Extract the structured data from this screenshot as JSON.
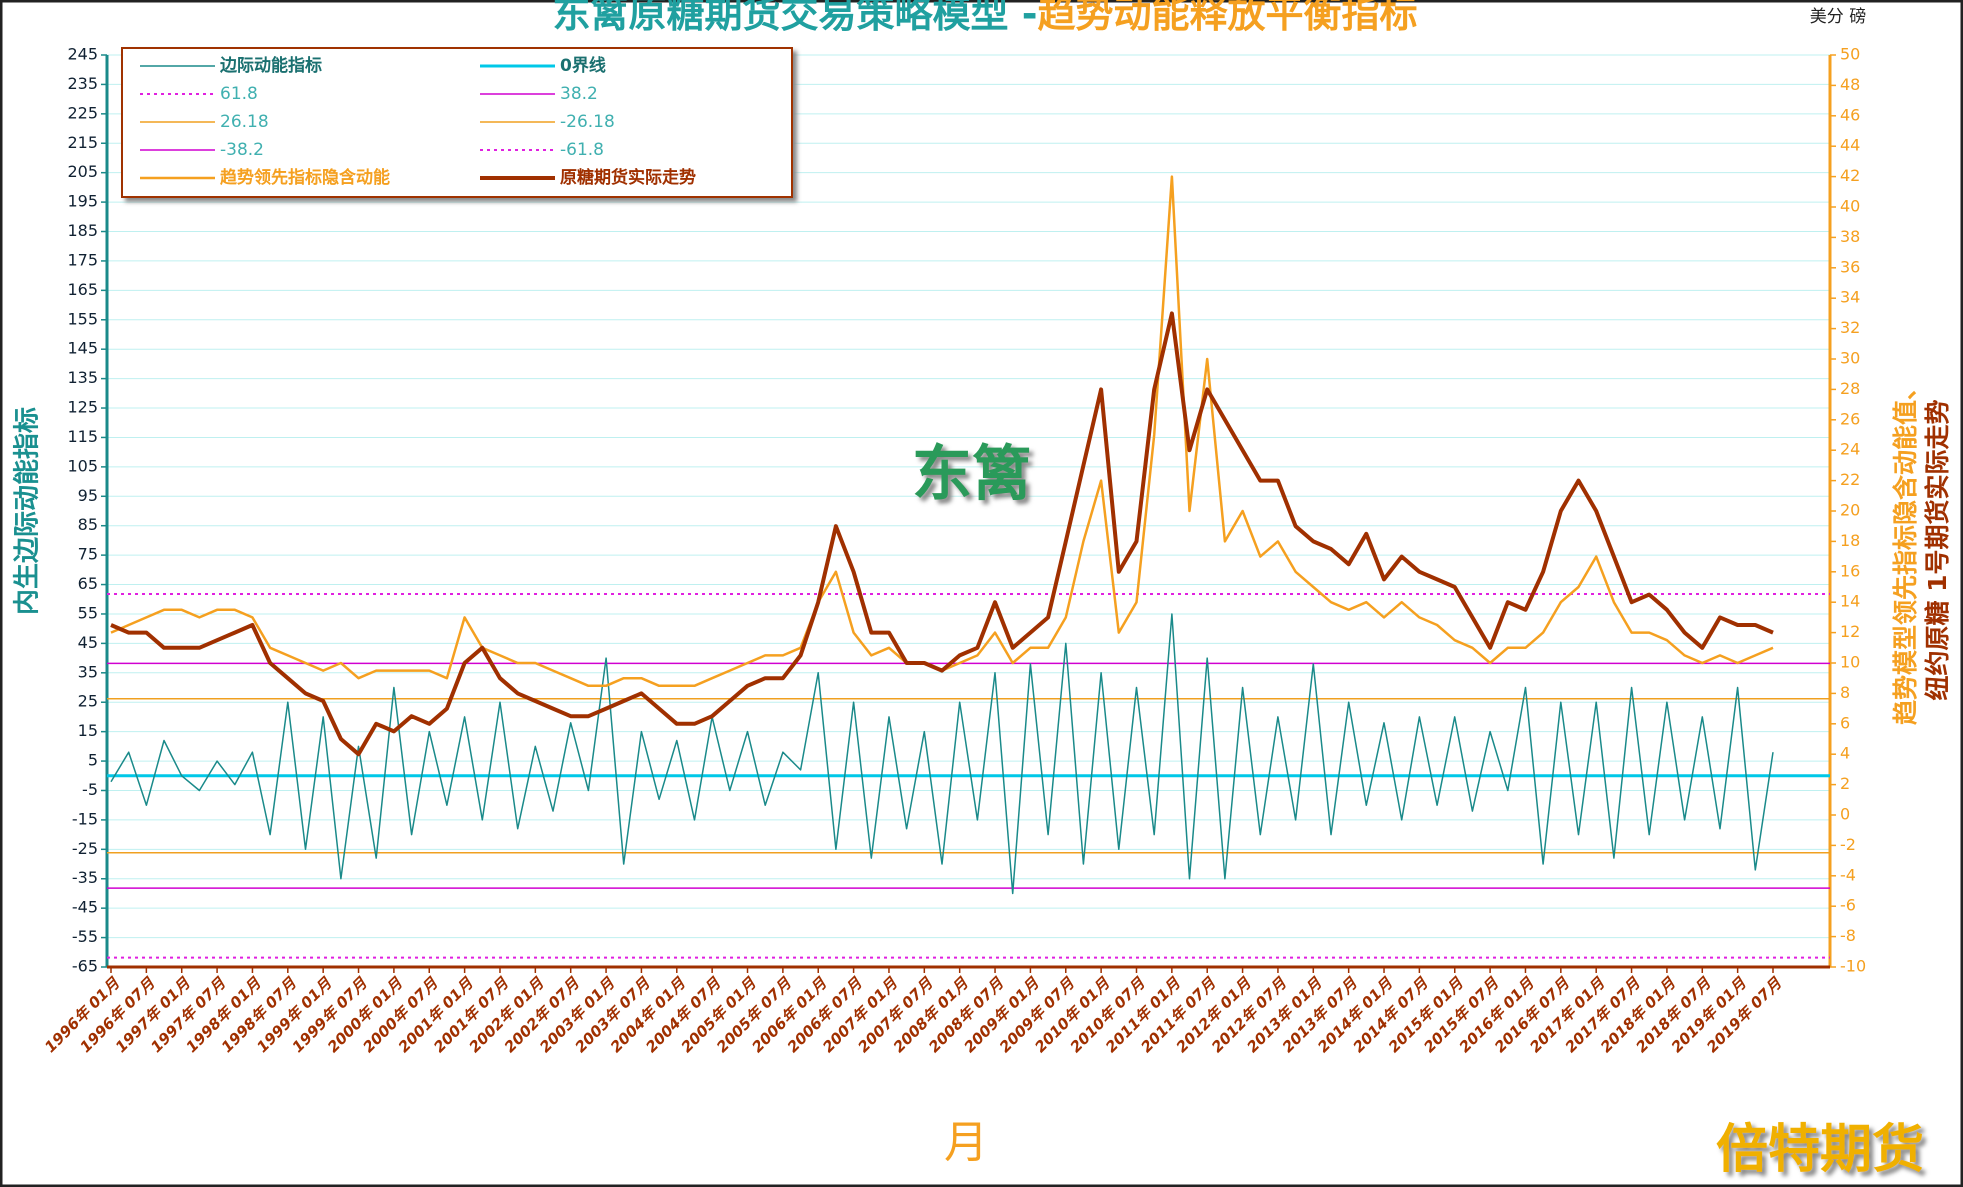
{
  "chart_data": {
    "type": "line",
    "title": "东篱原糖期货交易策略模型 -",
    "title2": "趋势动能释放平衡指标",
    "unit": "美分 磅",
    "ylabel": "内生边际动能指标",
    "y2label": [
      "趋势模型领先指标隐含动能值、",
      "纽约原糖 1号期货实际走势"
    ],
    "xlabel": "月",
    "watermarks": [
      "东篱",
      "倍特期货"
    ],
    "grid": true,
    "ylim": [
      -65,
      245
    ],
    "yticks": [
      -65,
      -55,
      -45,
      -35,
      -25,
      -15,
      -5,
      5,
      15,
      25,
      35,
      45,
      55,
      65,
      75,
      85,
      95,
      105,
      115,
      125,
      135,
      145,
      155,
      165,
      175,
      185,
      195,
      205,
      215,
      225,
      235,
      245
    ],
    "y2lim": [
      -10,
      50
    ],
    "y2ticks": [
      -10,
      -8,
      -6,
      -4,
      -2,
      0,
      2,
      4,
      6,
      8,
      10,
      12,
      14,
      16,
      18,
      20,
      22,
      24,
      26,
      28,
      30,
      32,
      34,
      36,
      38,
      40,
      42,
      44,
      46,
      48,
      50
    ],
    "categories": [
      "1996年 01月",
      null,
      "1996年 07月",
      null,
      "1997年 01月",
      null,
      "1997年 07月",
      null,
      "1998年 01月",
      null,
      "1998年 07月",
      null,
      "1999年 01月",
      null,
      "1999年 07月",
      null,
      "2000年 01月",
      null,
      "2000年 07月",
      null,
      "2001年 01月",
      null,
      "2001年 07月",
      null,
      "2002年 01月",
      null,
      "2002年 07月",
      null,
      "2003年 01月",
      null,
      "2003年 07月",
      null,
      "2004年 01月",
      null,
      "2004年 07月",
      null,
      "2005年 01月",
      null,
      "2005年 07月",
      null,
      "2006年 01月",
      null,
      "2006年 07月",
      null,
      "2007年 01月",
      null,
      "2007年 07月",
      null,
      "2008年 01月",
      null,
      "2008年 07月",
      null,
      "2009年 01月",
      null,
      "2009年 07月",
      null,
      "2010年 01月",
      null,
      "2010年 07月",
      null,
      "2011年 01月",
      null,
      "2011年 07月",
      null,
      "2012年 01月",
      null,
      "2012年 07月",
      null,
      "2013年 01月",
      null,
      "2013年 07月",
      null,
      "2014年 01月",
      null,
      "2014年 07月",
      null,
      "2015年 01月",
      null,
      "2015年 07月",
      null,
      "2016年 01月",
      null,
      "2016年 07月",
      null,
      "2017年 01月",
      null,
      "2017年 07月",
      null,
      "2018年 01月",
      null,
      "2018年 07月",
      null,
      "2019年 01月",
      null,
      "2019年 07月"
    ],
    "series": [
      {
        "name": "边际动能指标",
        "color": "#1a8a8a",
        "axis": "y",
        "width": 1.5,
        "values": [
          -2,
          8,
          -10,
          12,
          0,
          -5,
          5,
          -3,
          8,
          -20,
          25,
          -25,
          20,
          -35,
          10,
          -28,
          30,
          -20,
          15,
          -10,
          20,
          -15,
          25,
          -18,
          10,
          -12,
          18,
          -5,
          40,
          -30,
          15,
          -8,
          12,
          -15,
          20,
          -5,
          15,
          -10,
          8,
          2,
          35,
          -25,
          25,
          -28,
          20,
          -18,
          15,
          -30,
          25,
          -15,
          35,
          -40,
          38,
          -20,
          45,
          -30,
          35,
          -25,
          30,
          -20,
          55,
          -35,
          40,
          -35,
          30,
          -20,
          20,
          -15,
          38,
          -20,
          25,
          -10,
          18,
          -15,
          20,
          -10,
          20,
          -12,
          15,
          -5,
          30,
          -30,
          25,
          -20,
          25,
          -28,
          30,
          -20,
          25,
          -15,
          20,
          -18,
          30,
          -32,
          8
        ]
      },
      {
        "name": "趋势领先指标隐含动能",
        "color": "#f5a020",
        "axis": "y2",
        "width": 2.5,
        "values": [
          12,
          12.5,
          13,
          13.5,
          13.5,
          13,
          13.5,
          13.5,
          13,
          11,
          10.5,
          10,
          9.5,
          10,
          9,
          9.5,
          9.5,
          9.5,
          9.5,
          9,
          13,
          11,
          10.5,
          10,
          10,
          9.5,
          9,
          8.5,
          8.5,
          9,
          9,
          8.5,
          8.5,
          8.5,
          9,
          9.5,
          10,
          10.5,
          10.5,
          11,
          14,
          16,
          12,
          10.5,
          11,
          10,
          10,
          9.5,
          10,
          10.5,
          12,
          10,
          11,
          11,
          13,
          18,
          22,
          12,
          14,
          25,
          42,
          20,
          30,
          18,
          20,
          17,
          18,
          16,
          15,
          14,
          13.5,
          14,
          13,
          14,
          13,
          12.5,
          11.5,
          11,
          10,
          11,
          11,
          12,
          14,
          15,
          17,
          14,
          12,
          12,
          11.5,
          10.5,
          10,
          10.5,
          10,
          10.5,
          11
        ]
      },
      {
        "name": "原糖期货实际走势",
        "color": "#a03000",
        "axis": "y2",
        "width": 4,
        "values": [
          12.5,
          12,
          12,
          11,
          11,
          11,
          11.5,
          12,
          12.5,
          10,
          9,
          8,
          7.5,
          5,
          4,
          6,
          5.5,
          6.5,
          6,
          7,
          10,
          11,
          9,
          8,
          7.5,
          7,
          6.5,
          6.5,
          7,
          7.5,
          8,
          7,
          6,
          6,
          6.5,
          7.5,
          8.5,
          9,
          9,
          10.5,
          14,
          19,
          16,
          12,
          12,
          10,
          10,
          9.5,
          10.5,
          11,
          14,
          11,
          12,
          13,
          18,
          23,
          28,
          16,
          18,
          28,
          33,
          24,
          28,
          26,
          24,
          22,
          22,
          19,
          18,
          17.5,
          16.5,
          18.5,
          15.5,
          17,
          16,
          15.5,
          15,
          13,
          11,
          14,
          13.5,
          16,
          20,
          22,
          20,
          17,
          14,
          14.5,
          13.5,
          12,
          11,
          13,
          12.5,
          12.5,
          12
        ]
      }
    ],
    "reference_lines": [
      {
        "name": "0界线",
        "value": 0,
        "color": "#00c8e8",
        "width": 3,
        "dash": false
      },
      {
        "name": "61.8",
        "value": 61.8,
        "color": "#e020e0",
        "width": 2,
        "dash": true
      },
      {
        "name": "38.2",
        "value": 38.2,
        "color": "#d000d0",
        "width": 1.5,
        "dash": false
      },
      {
        "name": "26.18",
        "value": 26.18,
        "color": "#f0a020",
        "width": 1.5,
        "dash": false
      },
      {
        "name": "-26.18",
        "value": -26.18,
        "color": "#f0a020",
        "width": 1.5,
        "dash": false
      },
      {
        "name": "-38.2",
        "value": -38.2,
        "color": "#d000d0",
        "width": 1.5,
        "dash": false
      },
      {
        "name": "-61.8",
        "value": -61.8,
        "color": "#e020e0",
        "width": 2,
        "dash": true
      }
    ]
  }
}
